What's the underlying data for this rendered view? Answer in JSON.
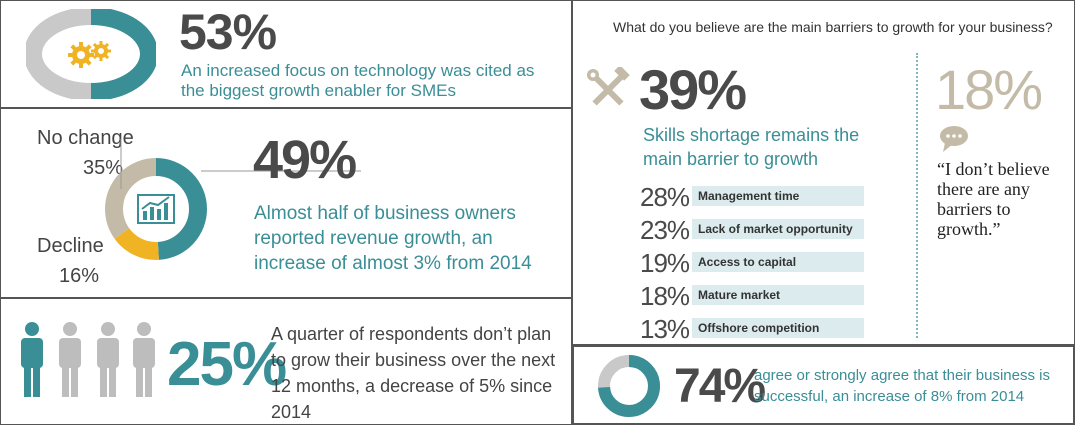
{
  "panel1": {
    "value": "53%",
    "desc": "An increased focus on technology was cited as the biggest growth enabler for SMEs",
    "ring_fraction": 0.53
  },
  "panel2": {
    "value": "49%",
    "desc": "Almost half of business owners reported revenue growth, an increase of almost 3% from 2014",
    "no_change_label": "No change",
    "no_change_value": "35%",
    "decline_label": "Decline",
    "decline_value": "16%",
    "ring": {
      "growth": 0.49,
      "no_change": 0.35,
      "decline": 0.16
    }
  },
  "panel3": {
    "value": "25%",
    "desc": "A quarter of respondents don’t plan to grow their business over the next 12 months, a decrease of 5% since 2014"
  },
  "panel4": {
    "question": "What do you believe are the main barriers to growth for your business?",
    "main_value": "39%",
    "main_desc": "Skills shortage remains the main barrier to growth",
    "bars": [
      {
        "pct": "28%",
        "label": "Management time",
        "value": 28
      },
      {
        "pct": "23%",
        "label": "Lack of market opportunity",
        "value": 23
      },
      {
        "pct": "19%",
        "label": "Access to capital",
        "value": 19
      },
      {
        "pct": "18%",
        "label": "Mature market",
        "value": 18
      },
      {
        "pct": "13%",
        "label": "Offshore competition",
        "value": 13
      }
    ],
    "side_value": "18%",
    "quote": "“I don’t believe there are any barriers to growth.”"
  },
  "panel5": {
    "value": "74%",
    "desc": "agree or strongly agree that their business is successful, an increase of 8% from 2014",
    "ring_fraction": 0.74
  },
  "colors": {
    "teal": "#3a8e96",
    "gray": "#c9c9c9",
    "gold": "#f0b323",
    "tan": "#c3bba7",
    "dark": "#4a4a4a"
  },
  "icons": [
    "gears-icon",
    "chart-icon",
    "person-icon",
    "tools-icon",
    "speech-bubble-icon"
  ]
}
